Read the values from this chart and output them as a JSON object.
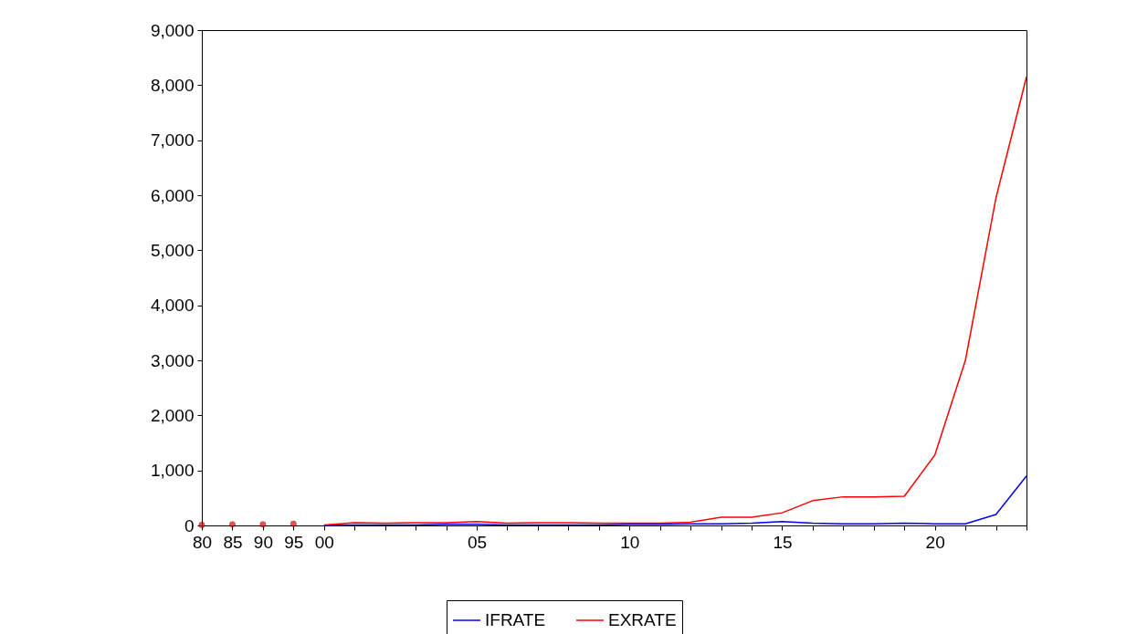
{
  "chart_data": {
    "type": "line",
    "categories": [
      "80",
      "85",
      "90",
      "95",
      "00",
      null,
      null,
      null,
      null,
      "05",
      null,
      null,
      null,
      null,
      "10",
      null,
      null,
      null,
      null,
      "15",
      null,
      null,
      null,
      null,
      "20",
      null,
      null,
      null
    ],
    "series": [
      {
        "name": "IFRATE",
        "color": "#0000ff",
        "values": [
          null,
          null,
          null,
          null,
          0,
          10,
          10,
          10,
          20,
          20,
          10,
          10,
          10,
          10,
          20,
          20,
          30,
          30,
          40,
          70,
          40,
          30,
          30,
          40,
          30,
          30,
          200,
          900
        ]
      },
      {
        "name": "EXRATE",
        "color": "#ff0000",
        "values": [
          null,
          null,
          null,
          null,
          10,
          50,
          40,
          50,
          50,
          70,
          40,
          50,
          50,
          40,
          40,
          40,
          60,
          150,
          150,
          230,
          450,
          520,
          520,
          530,
          1280,
          3000,
          5950,
          8150
        ]
      },
      {
        "type": "scatter",
        "color": "#ff0000",
        "values": [
          10,
          20,
          20,
          30,
          null,
          null,
          null,
          null,
          null,
          null,
          null,
          null,
          null,
          null,
          null,
          null,
          null,
          null,
          null,
          null,
          null,
          null,
          null,
          null,
          null,
          null,
          null,
          null
        ]
      }
    ],
    "ylim": [
      0,
      9000
    ],
    "yticks": [
      0,
      {
        "value": 1000,
        "label": "1,000"
      },
      {
        "value": 2000,
        "label": "2,000"
      },
      {
        "value": 3000,
        "label": "3,000"
      },
      {
        "value": 4000,
        "label": "4,000"
      },
      {
        "value": 5000,
        "label": "5,000"
      },
      {
        "value": 6000,
        "label": "6,000"
      },
      {
        "value": 7000,
        "label": "7,000"
      },
      {
        "value": 8000,
        "label": "8,000"
      },
      {
        "value": 9000,
        "label": "9,000"
      }
    ],
    "grid": false,
    "legend": "bottom",
    "marker": "none"
  }
}
